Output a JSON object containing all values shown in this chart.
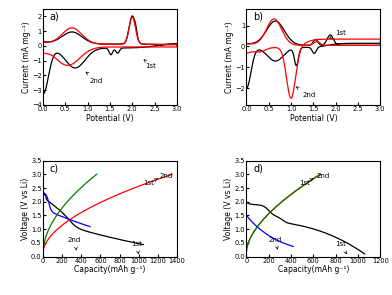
{
  "fig_width": 3.92,
  "fig_height": 2.95,
  "cv_xlabel": "Potential (V)",
  "cv_ylabel": "Current (mA mg⁻¹)",
  "cap_xlabel": "Capacity(mAh g⁻¹)",
  "cap_ylabel": "Voltage (V vs Li)",
  "panel_a": {
    "ylim": [
      -4.0,
      2.5
    ],
    "yticks": [
      -4,
      -3,
      -2,
      -1,
      0,
      1,
      2
    ],
    "xlim": [
      0,
      3.0
    ]
  },
  "panel_b": {
    "ylim": [
      -2.8,
      1.8
    ],
    "yticks": [
      -2,
      -1,
      0,
      1
    ],
    "xlim": [
      0,
      3.0
    ]
  },
  "panel_c": {
    "xlim": [
      0,
      1400
    ],
    "ylim": [
      0,
      3.5
    ],
    "xticks": [
      0,
      200,
      400,
      600,
      800,
      1000,
      1200,
      1400
    ]
  },
  "panel_d": {
    "xlim": [
      0,
      1200
    ],
    "ylim": [
      0,
      3.5
    ],
    "xticks": [
      0,
      200,
      400,
      600,
      800,
      1000,
      1200
    ]
  }
}
